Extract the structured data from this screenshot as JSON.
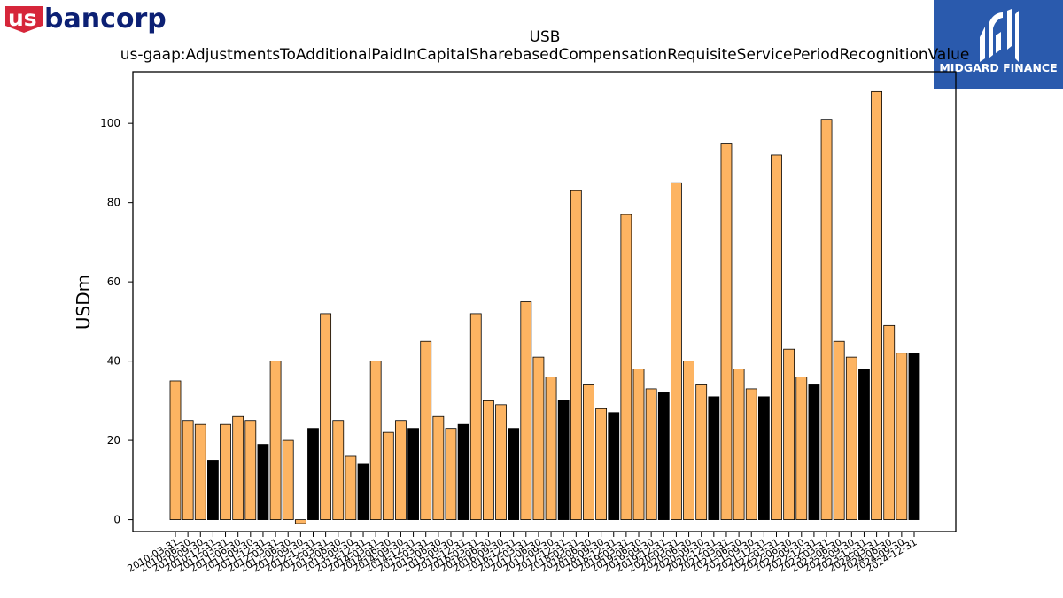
{
  "branding": {
    "left_logo_text_us": "us",
    "left_logo_text_rest": "bancorp",
    "left_logo_color_red": "#d6263a",
    "left_logo_color_blue": "#0c2074",
    "right_logo_text": "MIDGARD FINANCE",
    "right_logo_bg": "#2a5aad"
  },
  "chart_data": {
    "type": "bar",
    "title": "USB",
    "subtitle": "us-gaap:AdjustmentsToAdditionalPaidInCapitalSharebasedCompensationRequisiteServicePeriodRecognitionValue",
    "xlabel": "",
    "ylabel": "USDm",
    "ylim": [
      -3,
      113
    ],
    "yticks": [
      0,
      20,
      40,
      60,
      80,
      100
    ],
    "grid": false,
    "colors": {
      "quarter": "#fdb462",
      "annual": "#000000"
    },
    "categories": [
      "2010-03-31",
      "2010-06-30",
      "2010-09-30",
      "2010-12-31",
      "2011-03-31",
      "2011-06-30",
      "2011-09-30",
      "2011-12-31",
      "2012-03-31",
      "2012-06-30",
      "2012-09-30",
      "2012-12-31",
      "2013-03-31",
      "2013-06-30",
      "2013-09-30",
      "2013-12-31",
      "2014-03-31",
      "2014-06-30",
      "2014-09-30",
      "2014-12-31",
      "2015-03-31",
      "2015-06-30",
      "2015-09-30",
      "2015-12-31",
      "2016-03-31",
      "2016-06-30",
      "2016-09-30",
      "2016-12-31",
      "2017-03-31",
      "2017-06-30",
      "2017-09-30",
      "2017-12-31",
      "2018-03-31",
      "2018-06-30",
      "2018-09-30",
      "2018-12-31",
      "2019-03-31",
      "2019-06-30",
      "2019-09-30",
      "2019-12-31",
      "2020-03-31",
      "2020-06-30",
      "2020-09-30",
      "2020-12-31",
      "2021-03-31",
      "2021-06-30",
      "2021-09-30",
      "2021-12-31",
      "2022-03-31",
      "2022-06-30",
      "2022-09-30",
      "2022-12-31",
      "2023-03-31",
      "2023-06-30",
      "2023-09-30",
      "2023-12-31",
      "2024-03-31",
      "2024-06-30",
      "2024-09-30",
      "2024-12-31"
    ],
    "values": [
      35,
      25,
      24,
      15,
      24,
      26,
      25,
      19,
      40,
      20,
      -1,
      23,
      52,
      25,
      16,
      14,
      40,
      22,
      25,
      23,
      45,
      26,
      23,
      24,
      52,
      30,
      29,
      23,
      55,
      41,
      36,
      30,
      83,
      34,
      28,
      27,
      77,
      38,
      33,
      32,
      85,
      40,
      34,
      31,
      95,
      38,
      33,
      31,
      92,
      43,
      36,
      34,
      101,
      45,
      41,
      38,
      108,
      49,
      42,
      42
    ]
  }
}
